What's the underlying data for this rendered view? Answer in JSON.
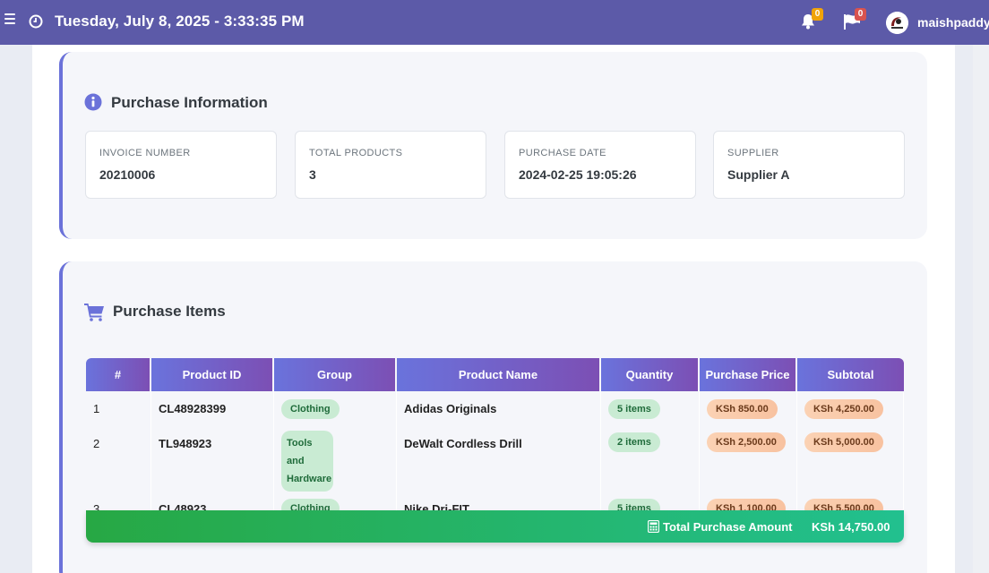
{
  "header": {
    "datetime": "Tuesday, July 8, 2025 - 3:33:35 PM",
    "notifications_count": "0",
    "messages_count": "0",
    "username": "maishpaddy"
  },
  "purchase_info": {
    "title": "Purchase Information",
    "fields": [
      {
        "label": "INVOICE NUMBER",
        "value": "20210006"
      },
      {
        "label": "TOTAL PRODUCTS",
        "value": "3"
      },
      {
        "label": "PURCHASE DATE",
        "value": "2024-02-25 19:05:26"
      },
      {
        "label": "SUPPLIER",
        "value": "Supplier A"
      }
    ]
  },
  "purchase_items": {
    "title": "Purchase Items",
    "columns": [
      "#",
      "Product ID",
      "Group",
      "Product Name",
      "Quantity",
      "Purchase Price",
      "Subtotal"
    ],
    "rows": [
      {
        "num": "1",
        "product_id": "CL48928399",
        "group": "Clothing",
        "name": "Adidas Originals",
        "quantity": "5 items",
        "price": "KSh 850.00",
        "subtotal": "KSh 4,250.00"
      },
      {
        "num": "2",
        "product_id": "TL948923",
        "group": "Tools and Hardware",
        "name": "DeWalt Cordless Drill",
        "quantity": "2 items",
        "price": "KSh 2,500.00",
        "subtotal": "KSh 5,000.00"
      },
      {
        "num": "3",
        "product_id": "CL48923",
        "group": "Clothing",
        "name": "Nike Dri-FIT",
        "quantity": "5 items",
        "price": "KSh 1,100.00",
        "subtotal": "KSh 5,500.00"
      }
    ],
    "total_label": "Total Purchase Amount",
    "total_value": "KSh 14,750.00"
  },
  "colors": {
    "header_bg": "#5c5aa8",
    "accent": "#6b72d9",
    "total_green": "#27a844"
  },
  "icons": [
    "menu-icon",
    "clock-icon",
    "bell-icon",
    "flag-icon",
    "info-icon",
    "cart-icon",
    "calculator-icon"
  ]
}
